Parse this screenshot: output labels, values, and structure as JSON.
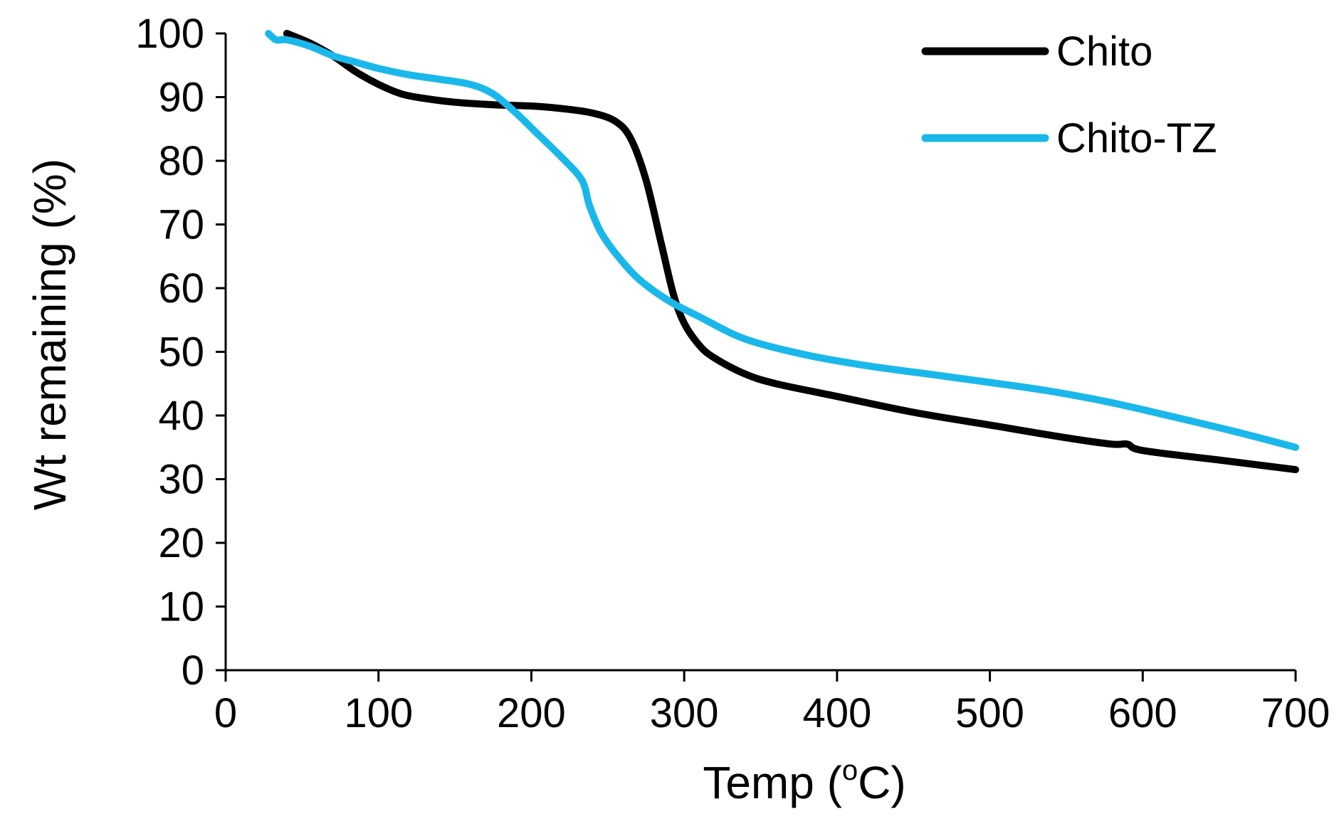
{
  "chart_data": {
    "type": "line",
    "title": "",
    "xlabel": "Temp (",
    "xlabel_sup": "o",
    "xlabel_end": "C)",
    "ylabel": "Wt remaining (%)",
    "xlim": [
      0,
      700
    ],
    "ylim": [
      0,
      100
    ],
    "xticks": [
      0,
      100,
      200,
      300,
      400,
      500,
      600,
      700
    ],
    "yticks": [
      0,
      10,
      20,
      30,
      40,
      50,
      60,
      70,
      80,
      90,
      100
    ],
    "grid": false,
    "legend_position": "top-right",
    "series": [
      {
        "name": "Chito",
        "color": "#000000",
        "x": [
          40,
          55,
          70,
          85,
          100,
          115,
          130,
          150,
          175,
          200,
          220,
          240,
          255,
          265,
          275,
          285,
          293,
          300,
          310,
          320,
          340,
          360,
          400,
          450,
          500,
          550,
          580,
          590,
          600,
          650,
          700
        ],
        "y": [
          100,
          98.5,
          96.5,
          94,
          92,
          90.5,
          89.8,
          89.2,
          88.8,
          88.6,
          88.2,
          87.5,
          86.2,
          83.5,
          77,
          67,
          59,
          54.5,
          51,
          49,
          46.5,
          45,
          43,
          40.5,
          38.5,
          36.5,
          35.5,
          35.5,
          34.5,
          33,
          31.5
        ]
      },
      {
        "name": "Chito-TZ",
        "color": "#1ab8ea",
        "x": [
          28,
          33,
          40,
          55,
          70,
          85,
          100,
          120,
          140,
          160,
          175,
          190,
          205,
          220,
          233,
          238,
          245,
          255,
          270,
          290,
          310,
          340,
          380,
          420,
          460,
          500,
          540,
          580,
          620,
          660,
          700
        ],
        "y": [
          100,
          99,
          99,
          98,
          96.5,
          95.5,
          94.5,
          93.5,
          92.8,
          92,
          90.5,
          87.5,
          84,
          80.5,
          77,
          73,
          69,
          65.5,
          61.5,
          58,
          55.5,
          52,
          49.5,
          47.8,
          46.5,
          45.2,
          43.8,
          42,
          39.8,
          37.5,
          35
        ]
      }
    ]
  }
}
